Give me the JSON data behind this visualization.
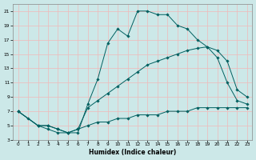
{
  "xlabel": "Humidex (Indice chaleur)",
  "bg_color": "#cce8e8",
  "grid_color": "#f0b8b8",
  "line_color": "#006060",
  "xlim": [
    -0.5,
    23.5
  ],
  "ylim": [
    3,
    22
  ],
  "xticks": [
    0,
    1,
    2,
    3,
    4,
    5,
    6,
    7,
    8,
    9,
    10,
    11,
    12,
    13,
    14,
    15,
    16,
    17,
    18,
    19,
    20,
    21,
    22,
    23
  ],
  "yticks": [
    3,
    5,
    7,
    9,
    11,
    13,
    15,
    17,
    19,
    21
  ],
  "series1_x": [
    0,
    1,
    2,
    3,
    4,
    5,
    6,
    7,
    8,
    9,
    10,
    11,
    12,
    13,
    14,
    15,
    16,
    17,
    18,
    19,
    20,
    21,
    22,
    23
  ],
  "series1_y": [
    7,
    6,
    5,
    5,
    4.5,
    4,
    4,
    8,
    11.5,
    16.5,
    18.5,
    17.5,
    21.0,
    21.0,
    20.5,
    20.5,
    19,
    18.5,
    17,
    16,
    15.5,
    14,
    10,
    9
  ],
  "series2_x": [
    0,
    2,
    3,
    4,
    5,
    6,
    7,
    8,
    9,
    10,
    11,
    12,
    13,
    14,
    15,
    16,
    17,
    18,
    19,
    20,
    21,
    22,
    23
  ],
  "series2_y": [
    7,
    5,
    5,
    4.5,
    4,
    4.5,
    7.5,
    8.5,
    9.5,
    10.5,
    11.5,
    12.5,
    13.5,
    14.0,
    14.5,
    15.0,
    15.5,
    15.8,
    16.0,
    14.5,
    11,
    8.5,
    8
  ],
  "series3_x": [
    0,
    2,
    3,
    4,
    5,
    6,
    7,
    8,
    9,
    10,
    11,
    12,
    13,
    14,
    15,
    16,
    17,
    18,
    19,
    20,
    21,
    22,
    23
  ],
  "series3_y": [
    7,
    5,
    4.5,
    4,
    4,
    4.5,
    5,
    5.5,
    5.5,
    6,
    6,
    6.5,
    6.5,
    6.5,
    7,
    7,
    7,
    7.5,
    7.5,
    7.5,
    7.5,
    7.5,
    7.5
  ]
}
